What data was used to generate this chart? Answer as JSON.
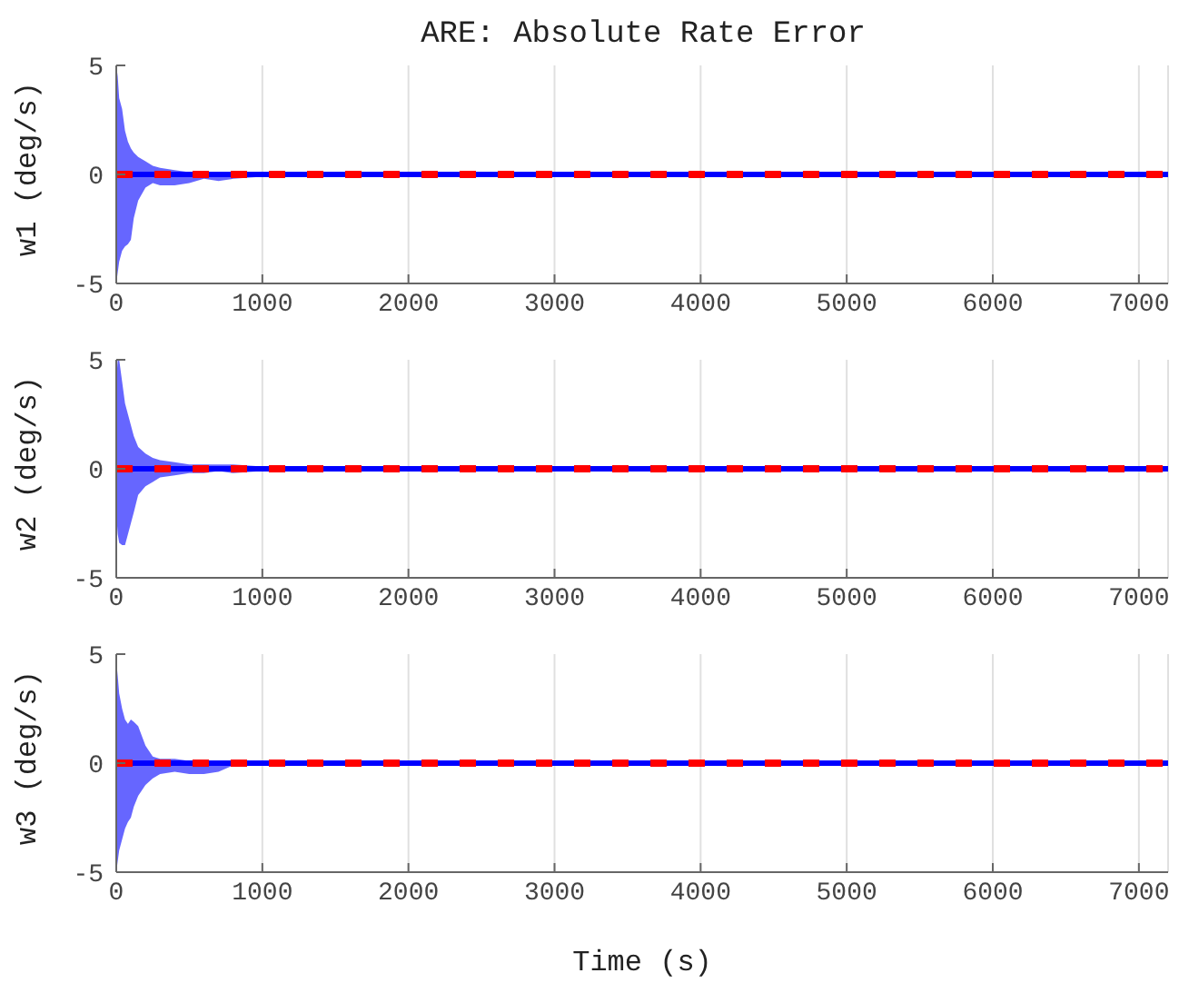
{
  "chart_data": [
    {
      "type": "line",
      "title": "ARE: Absolute Rate Error",
      "ylabel": "w1 (deg/s)",
      "xlim": [
        0,
        7200
      ],
      "xticks": [
        0,
        1000,
        2000,
        3000,
        4000,
        5000,
        6000,
        7000
      ],
      "ylim": [
        -5,
        5
      ],
      "yticks": [
        -5,
        0,
        5
      ],
      "grid": "x",
      "series": [
        {
          "color": "#0000ff",
          "x": [
            0,
            10,
            20,
            40,
            60,
            80,
            100,
            120,
            150,
            200,
            250,
            300,
            400,
            500,
            600,
            700,
            800,
            1000,
            1500,
            7200
          ],
          "values": [
            0,
            0,
            0,
            0,
            0,
            0,
            0,
            0,
            0,
            0,
            0,
            0,
            0,
            0,
            0,
            0,
            0,
            0,
            0,
            0
          ],
          "upper": [
            5,
            4.5,
            3.5,
            3,
            2,
            1.5,
            1.2,
            1,
            0.8,
            0.6,
            0.4,
            0.3,
            0.2,
            0.1,
            0.1,
            0.1,
            0.1,
            0.1,
            0.1,
            0.1
          ],
          "lower": [
            -5,
            -4.5,
            -4,
            -3.5,
            -3.3,
            -3.2,
            -3,
            -2,
            -1.2,
            -0.6,
            -0.4,
            -0.5,
            -0.5,
            -0.4,
            -0.2,
            -0.3,
            -0.2,
            -0.1,
            -0.1,
            -0.1
          ]
        },
        {
          "color": "#ff0000",
          "line_style": "dashed",
          "x": [
            0,
            7200
          ],
          "values": [
            0,
            0
          ]
        }
      ]
    },
    {
      "type": "line",
      "ylabel": "w2 (deg/s)",
      "xlim": [
        0,
        7200
      ],
      "xticks": [
        0,
        1000,
        2000,
        3000,
        4000,
        5000,
        6000,
        7000
      ],
      "ylim": [
        -5,
        5
      ],
      "yticks": [
        -5,
        0,
        5
      ],
      "grid": "x",
      "series": [
        {
          "color": "#0000ff",
          "x": [
            0,
            10,
            20,
            40,
            60,
            80,
            100,
            120,
            150,
            200,
            250,
            300,
            400,
            500,
            600,
            700,
            800,
            1000,
            1500,
            7200
          ],
          "values": [
            0,
            0,
            0,
            0,
            0,
            0,
            0,
            0,
            0,
            0,
            0,
            0,
            0,
            0,
            0,
            0,
            0,
            0,
            0,
            0
          ],
          "upper": [
            4,
            5,
            5,
            4,
            3,
            2.5,
            2,
            1.5,
            1,
            0.7,
            0.5,
            0.4,
            0.3,
            0.2,
            0.2,
            0.2,
            0.2,
            0.1,
            0.1,
            0.1
          ],
          "lower": [
            -2,
            -3,
            -3.4,
            -3.5,
            -3.5,
            -3,
            -2.5,
            -2,
            -1.2,
            -0.8,
            -0.6,
            -0.4,
            -0.3,
            -0.2,
            -0.2,
            -0.1,
            -0.2,
            -0.1,
            -0.1,
            -0.1
          ]
        },
        {
          "color": "#ff0000",
          "line_style": "dashed",
          "x": [
            0,
            7200
          ],
          "values": [
            0,
            0
          ]
        }
      ]
    },
    {
      "type": "line",
      "ylabel": "w3 (deg/s)",
      "xlabel": "Time (s)",
      "xlim": [
        0,
        7200
      ],
      "xticks": [
        0,
        1000,
        2000,
        3000,
        4000,
        5000,
        6000,
        7000
      ],
      "ylim": [
        -5,
        5
      ],
      "yticks": [
        -5,
        0,
        5
      ],
      "grid": "x",
      "series": [
        {
          "color": "#0000ff",
          "x": [
            0,
            10,
            20,
            40,
            60,
            80,
            100,
            120,
            150,
            200,
            250,
            300,
            400,
            500,
            600,
            700,
            800,
            1000,
            1500,
            7200
          ],
          "values": [
            0,
            0,
            0,
            0,
            0,
            0,
            0,
            0,
            0,
            0,
            0,
            0,
            0,
            0,
            0,
            0,
            0,
            0,
            0,
            0
          ],
          "upper": [
            4.7,
            4,
            3.2,
            2.5,
            2,
            1.8,
            2,
            1.9,
            1.7,
            0.8,
            0.3,
            0.2,
            0.2,
            0.1,
            0.1,
            0.1,
            0.1,
            0.1,
            0.1,
            0.1
          ],
          "lower": [
            -5,
            -4.5,
            -4,
            -3.5,
            -3,
            -2.7,
            -2.5,
            -2,
            -1.5,
            -1,
            -0.7,
            -0.5,
            -0.4,
            -0.5,
            -0.5,
            -0.4,
            -0.1,
            -0.1,
            -0.1,
            -0.1
          ]
        },
        {
          "color": "#ff0000",
          "line_style": "dashed",
          "x": [
            0,
            7200
          ],
          "values": [
            0,
            0
          ]
        }
      ]
    }
  ]
}
